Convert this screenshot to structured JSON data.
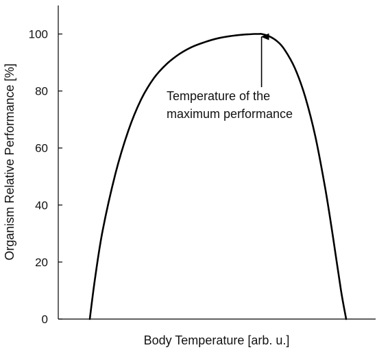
{
  "chart_data": {
    "type": "line",
    "title": "",
    "xlabel": "Body Temperature [arb. u.]",
    "ylabel": "Organism Relative Performance [%]",
    "ylim": [
      0,
      110
    ],
    "yticks": [
      0,
      20,
      40,
      60,
      80,
      100
    ],
    "ytick_labels": [
      "0",
      "20",
      "40",
      "60",
      "80",
      "100"
    ],
    "x_ticks_shown": false,
    "grid": false,
    "line_color": "#000000",
    "series": [
      {
        "values_note": "",
        "x": [
          0.0,
          0.02,
          0.05,
          0.1,
          0.15,
          0.2,
          0.25,
          0.3,
          0.35,
          0.4,
          0.45,
          0.5,
          0.55,
          0.6,
          0.62,
          0.64,
          0.66,
          0.67,
          0.7,
          0.73,
          0.76,
          0.8,
          0.84,
          0.88,
          0.92,
          0.95,
          0.98,
          1.0
        ],
        "y": [
          0,
          14,
          31,
          51,
          66,
          77,
          84.5,
          89.5,
          93,
          95.5,
          97.2,
          98.5,
          99.3,
          99.8,
          99.9,
          100,
          100,
          100,
          99.2,
          97.5,
          94.5,
          88,
          78,
          64,
          45,
          28,
          10,
          0
        ]
      }
    ],
    "annotations": [
      {
        "text_line1": "Temperature of the",
        "text_line2": "maximum performance",
        "x": 0.67,
        "y": 100
      }
    ]
  }
}
